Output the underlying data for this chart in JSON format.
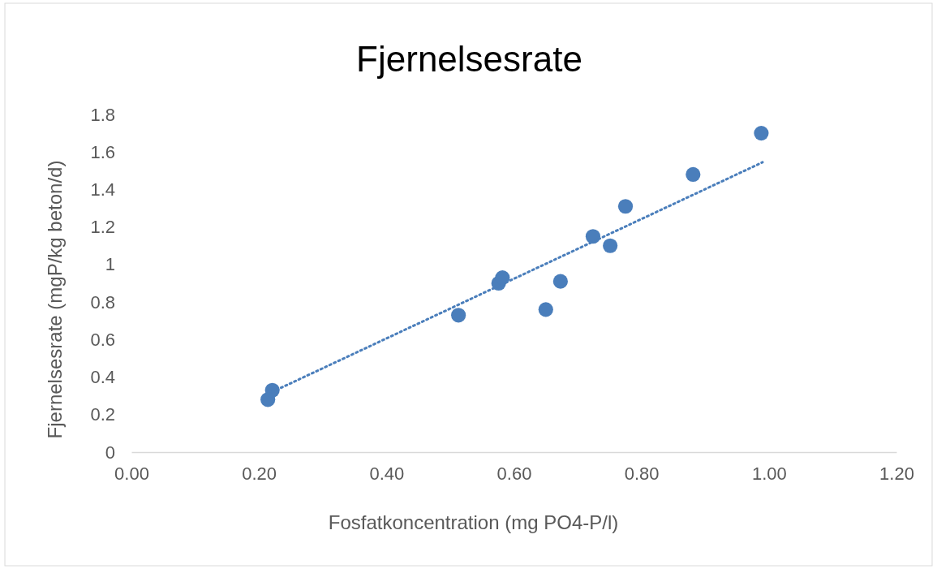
{
  "chart_data": {
    "type": "scatter",
    "title": "Fjernelsesrate",
    "xlabel": "Fosfatkoncentration (mg PO4-P/l)",
    "ylabel": "Fjernelsesrate (mgP/kg beton/d)",
    "xlim": [
      0,
      1.2
    ],
    "xticks": [
      {
        "value": 0,
        "label": "0.00"
      },
      {
        "value": 0.2,
        "label": "0.20"
      },
      {
        "value": 0.4,
        "label": "0.40"
      },
      {
        "value": 0.6,
        "label": "0.60"
      },
      {
        "value": 0.8,
        "label": "0.80"
      },
      {
        "value": 1,
        "label": "1.00"
      },
      {
        "value": 1.2,
        "label": "1.20"
      }
    ],
    "ylim": [
      0,
      1.8
    ],
    "yticks": [
      0,
      0.2,
      0.4,
      0.6,
      0.8,
      1,
      1.2,
      1.4,
      1.6,
      1.8
    ],
    "grid": false,
    "series": [
      {
        "marker": "circle",
        "color": "#4a7ebb",
        "x": [
          0.214,
          0.221,
          0.513,
          0.576,
          0.582,
          0.65,
          0.673,
          0.724,
          0.751,
          0.775,
          0.881,
          0.988
        ],
        "values": [
          0.28,
          0.33,
          0.73,
          0.9,
          0.93,
          0.76,
          0.91,
          1.15,
          1.1,
          1.31,
          1.48,
          1.7
        ]
      },
      {
        "type": "line",
        "line_style": "dotted",
        "color": "#4a7ebb",
        "x": [
          0.214,
          0.99
        ],
        "values": [
          0.31,
          1.545
        ]
      }
    ]
  }
}
